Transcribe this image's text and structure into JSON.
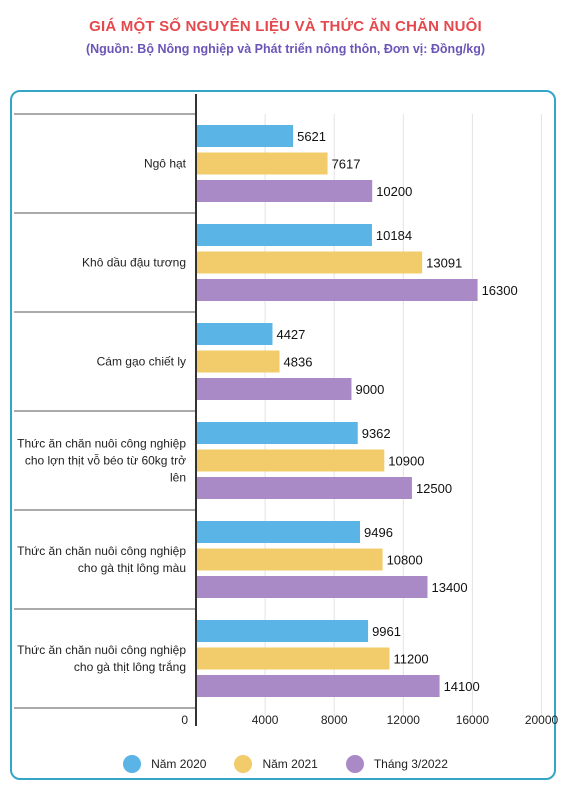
{
  "header": {
    "title": "GIÁ MỘT SỐ NGUYÊN LIỆU VÀ THỨC ĂN CHĂN NUÔI",
    "subtitle": "(Nguồn: Bộ Nông nghiệp và Phát triển nông thôn, Đơn vị: Đồng/kg)"
  },
  "chart_data": {
    "type": "bar",
    "orientation": "horizontal",
    "title": "GIÁ MỘT SỐ NGUYÊN LIỆU VÀ THỨC ĂN CHĂN NUÔI",
    "categories": [
      [
        "Ngô hạt"
      ],
      [
        "Khô dầu đậu tương"
      ],
      [
        "Cám gạo chiết ly"
      ],
      [
        "Thức ăn chăn nuôi công nghiệp",
        "cho lợn thịt vỗ béo từ 60kg trở",
        "lên"
      ],
      [
        "Thức ăn chăn nuôi công nghiệp",
        "cho gà thịt lông màu"
      ],
      [
        "Thức ăn chăn nuôi công nghiệp",
        "cho gà thịt lông trắng"
      ]
    ],
    "series": [
      {
        "name": "Năm 2020",
        "color": "#5ab4e5",
        "values": [
          5621,
          10184,
          4427,
          9362,
          9496,
          9961
        ]
      },
      {
        "name": "Năm 2021",
        "color": "#f2cc6b",
        "values": [
          7617,
          13091,
          4836,
          10900,
          10800,
          11200
        ]
      },
      {
        "name": "Tháng 3/2022",
        "color": "#a98ac7",
        "values": [
          10200,
          16300,
          9000,
          12500,
          13400,
          14100
        ]
      }
    ],
    "xlim": [
      0,
      20000
    ],
    "xticks": [
      0,
      4000,
      8000,
      12000,
      16000,
      20000
    ],
    "grid": true,
    "legend_position": "bottom"
  }
}
